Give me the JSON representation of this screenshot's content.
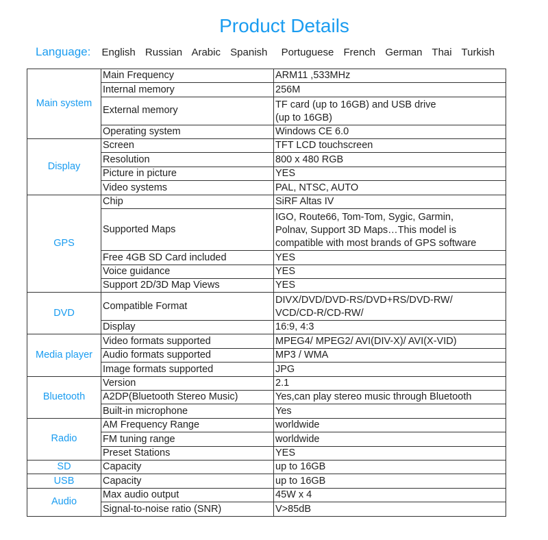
{
  "title": "Product Details",
  "language": {
    "label": "Language:",
    "items": [
      "English",
      "Russian",
      "Arabic",
      "Spanish",
      "Portuguese",
      "French",
      "German",
      "Thai",
      "Turkish"
    ]
  },
  "accent_color": "#1a9cf0",
  "specs": [
    {
      "category": "Main system",
      "rows": [
        {
          "name": "Main Frequency",
          "value": [
            "ARM11 ,533MHz"
          ]
        },
        {
          "name": "Internal memory",
          "value": [
            "256M"
          ]
        },
        {
          "name": "External memory",
          "value": [
            "TF card (up to 16GB) and USB drive",
            "(up to 16GB)"
          ]
        },
        {
          "name": "Operating system",
          "value": [
            "Windows CE 6.0"
          ]
        }
      ]
    },
    {
      "category": "Display",
      "rows": [
        {
          "name": "Screen",
          "value": [
            "TFT LCD touchscreen"
          ]
        },
        {
          "name": "Resolution",
          "value": [
            "800 x 480 RGB"
          ]
        },
        {
          "name": "Picture in picture",
          "value": [
            "YES"
          ]
        },
        {
          "name": "Video systems",
          "value": [
            "PAL, NTSC, AUTO"
          ]
        }
      ]
    },
    {
      "category": "GPS",
      "rows": [
        {
          "name": "Chip",
          "value": [
            "SiRF Altas IV"
          ]
        },
        {
          "name": "Supported Maps",
          "value": [
            "IGO, Route66, Tom-Tom, Sygic, Garmin,",
            "Polnav, Support 3D Maps…This model is",
            "compatible with most brands of GPS software"
          ]
        },
        {
          "name": "Free 4GB SD Card included",
          "value": [
            "YES"
          ]
        },
        {
          "name": "Voice guidance",
          "value": [
            "YES"
          ]
        },
        {
          "name": "Support 2D/3D Map Views",
          "value": [
            "YES"
          ]
        }
      ]
    },
    {
      "category": "DVD",
      "rows": [
        {
          "name": "Compatible Format",
          "value": [
            "DIVX/DVD/DVD-RS/DVD+RS/DVD-RW/",
            "VCD/CD-R/CD-RW/"
          ]
        },
        {
          "name": "Display",
          "value": [
            "16:9, 4:3"
          ]
        }
      ]
    },
    {
      "category": "Media player",
      "rows": [
        {
          "name": "Video formats supported",
          "value": [
            "MPEG4/ MPEG2/ AVI(DIV-X)/ AVI(X-VID)"
          ]
        },
        {
          "name": "Audio formats supported",
          "value": [
            "MP3 / WMA"
          ]
        },
        {
          "name": "Image formats supported",
          "value": [
            "JPG"
          ]
        }
      ]
    },
    {
      "category": "Bluetooth",
      "rows": [
        {
          "name": "Version",
          "value": [
            "2.1"
          ]
        },
        {
          "name": "A2DP(Bluetooth Stereo Music)",
          "value": [
            "Yes,can play stereo music through Bluetooth"
          ]
        },
        {
          "name": "Built-in microphone",
          "value": [
            "Yes"
          ]
        }
      ]
    },
    {
      "category": "Radio",
      "rows": [
        {
          "name": "AM Frequency Range",
          "value": [
            "worldwide"
          ]
        },
        {
          "name": "FM tuning range",
          "value": [
            "worldwide"
          ]
        },
        {
          "name": "Preset Stations",
          "value": [
            "YES"
          ]
        }
      ]
    },
    {
      "category": "SD",
      "rows": [
        {
          "name": "Capacity",
          "value": [
            "up to 16GB"
          ]
        }
      ]
    },
    {
      "category": "USB",
      "rows": [
        {
          "name": "Capacity",
          "value": [
            "up to 16GB"
          ]
        }
      ]
    },
    {
      "category": "Audio",
      "rows": [
        {
          "name": "Max audio output",
          "value": [
            "45W x 4"
          ]
        },
        {
          "name": "Signal-to-noise ratio (SNR)",
          "value": [
            "V>85dB"
          ]
        }
      ]
    }
  ]
}
